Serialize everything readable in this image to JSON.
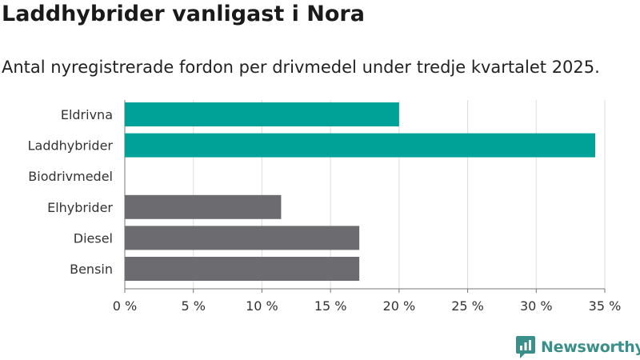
{
  "title": "Laddhybrider vanligast i Nora",
  "subtitle": "Antal nyregistrerade fordon per drivmedel under tredje kvartalet 2025.",
  "chart_data": {
    "type": "bar",
    "orientation": "horizontal",
    "categories": [
      "Eldrivna",
      "Laddhybrider",
      "Biodrivmedel",
      "Elhybrider",
      "Diesel",
      "Bensin"
    ],
    "values": [
      20.0,
      34.3,
      0,
      11.4,
      17.1,
      17.1
    ],
    "bar_colors": [
      "#00a298",
      "#00a298",
      "#00a298",
      "#6c6b70",
      "#6c6b70",
      "#6c6b70"
    ],
    "unit": "%",
    "xlim": [
      0,
      35
    ],
    "xticks": [
      0,
      5,
      10,
      15,
      20,
      25,
      30,
      35
    ],
    "xtick_labels": [
      "0 %",
      "5 %",
      "10 %",
      "15 %",
      "20 %",
      "25 %",
      "30 %",
      "35 %"
    ],
    "grid": true
  },
  "branding": {
    "logo_text": "Newsworthy",
    "logo_color": "#3a8f8a"
  }
}
